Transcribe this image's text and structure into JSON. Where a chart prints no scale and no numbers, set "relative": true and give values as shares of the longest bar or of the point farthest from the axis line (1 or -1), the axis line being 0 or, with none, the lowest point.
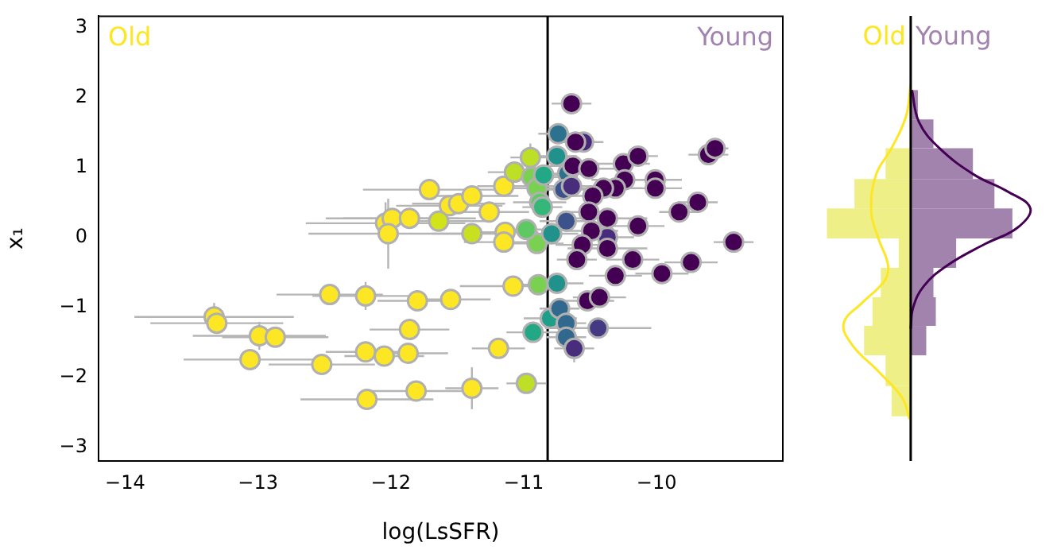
{
  "chart_data": [
    {
      "type": "scatter",
      "xlabel": "log(LsSFR)",
      "ylabel": "x₁",
      "annotations": [
        "Old",
        "Young"
      ],
      "marker": "circle",
      "xlim": [
        -14.2,
        -9.05
      ],
      "ylim": [
        -3.2,
        3.16
      ],
      "xticks": [
        {
          "value": -14,
          "label": "−14"
        },
        {
          "value": -13,
          "label": "−13"
        },
        {
          "value": -12,
          "label": "−12"
        },
        {
          "value": -11,
          "label": "−11"
        },
        {
          "value": -10,
          "label": "−10"
        }
      ],
      "yticks": [
        {
          "value": -3,
          "label": "−3"
        },
        {
          "value": -2,
          "label": "−2"
        },
        {
          "value": -1,
          "label": "−1"
        },
        0,
        1,
        2,
        3
      ],
      "ref_lines": [
        {
          "axis": "x",
          "value": -10.82,
          "color": "#000000"
        }
      ],
      "series": [
        {
          "x": [
            -11.71,
            -11.56,
            -11.49,
            -11.39,
            -11.26,
            -12.04,
            -11.99,
            -11.86,
            -11.64,
            -12.02,
            -11.39,
            -12.46,
            -12.19,
            -11.8,
            -11.55,
            -13.33,
            -13.31,
            -12.99,
            -12.87,
            -11.86,
            -13.06,
            -12.52,
            -12.19,
            -12.05,
            -11.87,
            -12.18,
            -11.81,
            -11.39,
            -11.15,
            -11.14,
            -11.15,
            -11.08,
            -11.19,
            -10.95,
            -11.07,
            -10.98,
            -10.94,
            -10.9,
            -10.88,
            -10.85,
            -10.86,
            -10.9,
            -10.98,
            -10.89,
            -10.93,
            -10.74,
            -10.75,
            -10.67,
            -10.79,
            -10.75,
            -10.8,
            -10.73,
            -10.68,
            -10.68,
            -10.68,
            -10.7,
            -10.44,
            -10.62,
            -10.64,
            -10.37,
            -10.55,
            -10.64,
            -10.61,
            -10.63,
            -10.51,
            -10.25,
            -10.14,
            -10.24,
            -10.31,
            -10.4,
            -10.01,
            -10.01,
            -10.48,
            -9.69,
            -9.83,
            -9.61,
            -9.56,
            -9.42,
            -10.51,
            -10.37,
            -10.14,
            -10.49,
            -10.56,
            -10.37,
            -10.6,
            -10.18,
            -10.31,
            -9.96,
            -9.74,
            -10.52,
            -10.43
          ],
          "values": [
            0.68,
            0.45,
            0.48,
            0.59,
            0.36,
            0.2,
            0.27,
            0.27,
            0.23,
            0.05,
            0.05,
            -0.82,
            -0.84,
            -0.91,
            -0.89,
            -1.14,
            -1.23,
            -1.41,
            -1.43,
            -1.32,
            -1.75,
            -1.82,
            -1.64,
            -1.7,
            -1.66,
            -2.32,
            -2.2,
            -2.16,
            0.73,
            0.07,
            -0.07,
            -0.7,
            -1.59,
            1.14,
            0.93,
            -2.09,
            0.86,
            0.7,
            0.5,
            0.89,
            0.43,
            -0.09,
            0.11,
            -0.68,
            -1.36,
            1.48,
            1.16,
            0.91,
            0.05,
            -0.66,
            -1.16,
            -1.02,
            -1.23,
            -1.43,
            0.23,
            0.68,
            -1.3,
            -1.59,
            0.73,
            0.0,
            1.36,
            1.91,
            1.36,
            1.02,
            0.98,
            1.05,
            1.16,
            0.82,
            0.7,
            0.7,
            0.82,
            0.7,
            0.59,
            0.5,
            0.36,
            1.18,
            1.27,
            -0.07,
            0.36,
            0.27,
            0.16,
            0.09,
            -0.11,
            -0.16,
            -0.32,
            -0.32,
            -0.55,
            -0.52,
            -0.36,
            -0.91,
            -0.86
          ],
          "colors": [
            "#fde725",
            "#fde725",
            "#fde725",
            "#fde725",
            "#fde725",
            "#fde725",
            "#fde725",
            "#fde725",
            "#d2e21b",
            "#fde725",
            "#c8e020",
            "#fde725",
            "#fde725",
            "#fde725",
            "#fde725",
            "#fde725",
            "#fde725",
            "#fde725",
            "#fde725",
            "#fde725",
            "#fde725",
            "#fde725",
            "#fde725",
            "#fde725",
            "#fde725",
            "#fde725",
            "#fde725",
            "#fde725",
            "#fde725",
            "#fde725",
            "#fde725",
            "#fde725",
            "#fde725",
            "#bddf26",
            "#bddf26",
            "#bddf26",
            "#7ad151",
            "#7ad151",
            "#5ec962",
            "#22a884",
            "#35b779",
            "#7ad151",
            "#5ec962",
            "#7ad151",
            "#22a884",
            "#2c728e",
            "#21918c",
            "#2c728e",
            "#21918c",
            "#21918c",
            "#1f9e89",
            "#31688e",
            "#31688e",
            "#31688e",
            "#3b528b",
            "#3b528b",
            "#443983",
            "#472d7b",
            "#472d7b",
            "#472d7b",
            "#482878",
            "#440154",
            "#440154",
            "#440154",
            "#440154",
            "#440154",
            "#440154",
            "#440154",
            "#440154",
            "#440154",
            "#440154",
            "#440154",
            "#440154",
            "#440154",
            "#440154",
            "#440154",
            "#440154",
            "#440154",
            "#440154",
            "#440154",
            "#440154",
            "#440154",
            "#440154",
            "#440154",
            "#440154",
            "#440154",
            "#440154",
            "#440154",
            "#440154",
            "#440154",
            "#440154"
          ],
          "xerrors": [
            0.5,
            0.4,
            0.35,
            0.35,
            0.3,
            0.6,
            0.5,
            0.5,
            0.4,
            0.6,
            0.3,
            0.4,
            0.4,
            0.3,
            0.3,
            0.6,
            0.5,
            0.5,
            0.4,
            0.3,
            0.5,
            0.4,
            0.3,
            0.3,
            0.3,
            0.5,
            0.4,
            0.2,
            0.2,
            0.25,
            0.3,
            0.4,
            0.2,
            0.15,
            0.2,
            0.15,
            0.2,
            0.2,
            0.2,
            0.2,
            0.15,
            0.2,
            0.2,
            0.2,
            0.2,
            0.15,
            0.15,
            0.15,
            0.2,
            0.2,
            0.2,
            0.15,
            0.15,
            0.15,
            0.2,
            0.2,
            0.4,
            0.15,
            0.2,
            0.2,
            0.15,
            0.15,
            0.15,
            0.2,
            0.2,
            0.2,
            0.15,
            0.25,
            0.2,
            0.2,
            0.2,
            0.2,
            0.2,
            0.15,
            0.15,
            0.15,
            0.1,
            0.15,
            0.2,
            0.3,
            0.2,
            0.2,
            0.2,
            0.3,
            0.15,
            0.2,
            0.2,
            0.2,
            0.2,
            0.2,
            0.2
          ],
          "errors": [
            0.1,
            0.1,
            0.1,
            0.1,
            0.1,
            0.3,
            0.1,
            0.1,
            0.1,
            0.5,
            0.1,
            0.1,
            0.2,
            0.1,
            0.1,
            0.2,
            0.1,
            0.2,
            0.1,
            0.1,
            0.1,
            0.1,
            0.1,
            0.1,
            0.1,
            0.1,
            0.1,
            0.3,
            0.1,
            0.1,
            0.1,
            0.1,
            0.1,
            0.2,
            0.1,
            0.1,
            0.1,
            0.1,
            0.1,
            0.1,
            0.1,
            0.1,
            0.1,
            0.1,
            0.1,
            0.1,
            0.1,
            0.1,
            0.1,
            0.1,
            0.1,
            0.1,
            0.1,
            0.1,
            0.1,
            0.1,
            0.1,
            0.2,
            0.1,
            0.1,
            0.1,
            0.1,
            0.1,
            0.1,
            0.1,
            0.1,
            0.1,
            0.1,
            0.1,
            0.1,
            0.1,
            0.1,
            0.1,
            0.1,
            0.1,
            0.1,
            0.1,
            0.1,
            0.1,
            0.1,
            0.1,
            0.1,
            0.1,
            0.1,
            0.1,
            0.1,
            0.1,
            0.1,
            0.1,
            0.1,
            0.1
          ]
        }
      ]
    },
    {
      "type": "histogram",
      "orientation": "horizontal",
      "relative": true,
      "ylim": [
        -3.2,
        3.16
      ],
      "tick_labels": false,
      "series": [
        {
          "color": "#efef88",
          "bins": [
            -2.56,
            -2.13,
            -1.69,
            -1.27,
            -0.86,
            -0.44,
            -0.02,
            0.41,
            0.83,
            1.27
          ],
          "values": [
            -0.16,
            -0.21,
            -0.39,
            -0.32,
            -0.25,
            -0.1,
            -0.7,
            -0.47,
            -0.21
          ]
        },
        {
          "name": "Young",
          "color": "#a283ae",
          "bins": [
            -1.69,
            -1.27,
            -0.86,
            -0.44,
            -0.02,
            0.41,
            0.83,
            1.27,
            1.68,
            2.1
          ],
          "values": [
            0.13,
            0.21,
            0.19,
            0.38,
            0.85,
            0.7,
            0.52,
            0.19,
            0.06
          ]
        },
        {
          "type": "line",
          "name": "Old",
          "color": "#fde725",
          "x": [
            -2.6,
            -2.3,
            -1.92,
            -1.54,
            -1.23,
            -0.93,
            -0.63,
            -0.4,
            -0.02,
            0.36,
            0.89,
            1.27,
            1.72,
            2.18
          ],
          "values": [
            -0.01,
            -0.07,
            -0.27,
            -0.49,
            -0.56,
            -0.4,
            -0.22,
            -0.19,
            -0.27,
            -0.33,
            -0.29,
            -0.16,
            -0.04,
            0
          ]
        },
        {
          "type": "line",
          "color": "#440154",
          "x": [
            -1.31,
            -1.01,
            -0.7,
            -0.4,
            -0.1,
            0.13,
            0.41,
            0.66,
            0.89,
            1.27,
            1.64,
            2.1
          ],
          "values": [
            0,
            0.02,
            0.11,
            0.31,
            0.62,
            0.89,
            1,
            0.8,
            0.53,
            0.24,
            0.07,
            0.01
          ]
        }
      ]
    }
  ]
}
